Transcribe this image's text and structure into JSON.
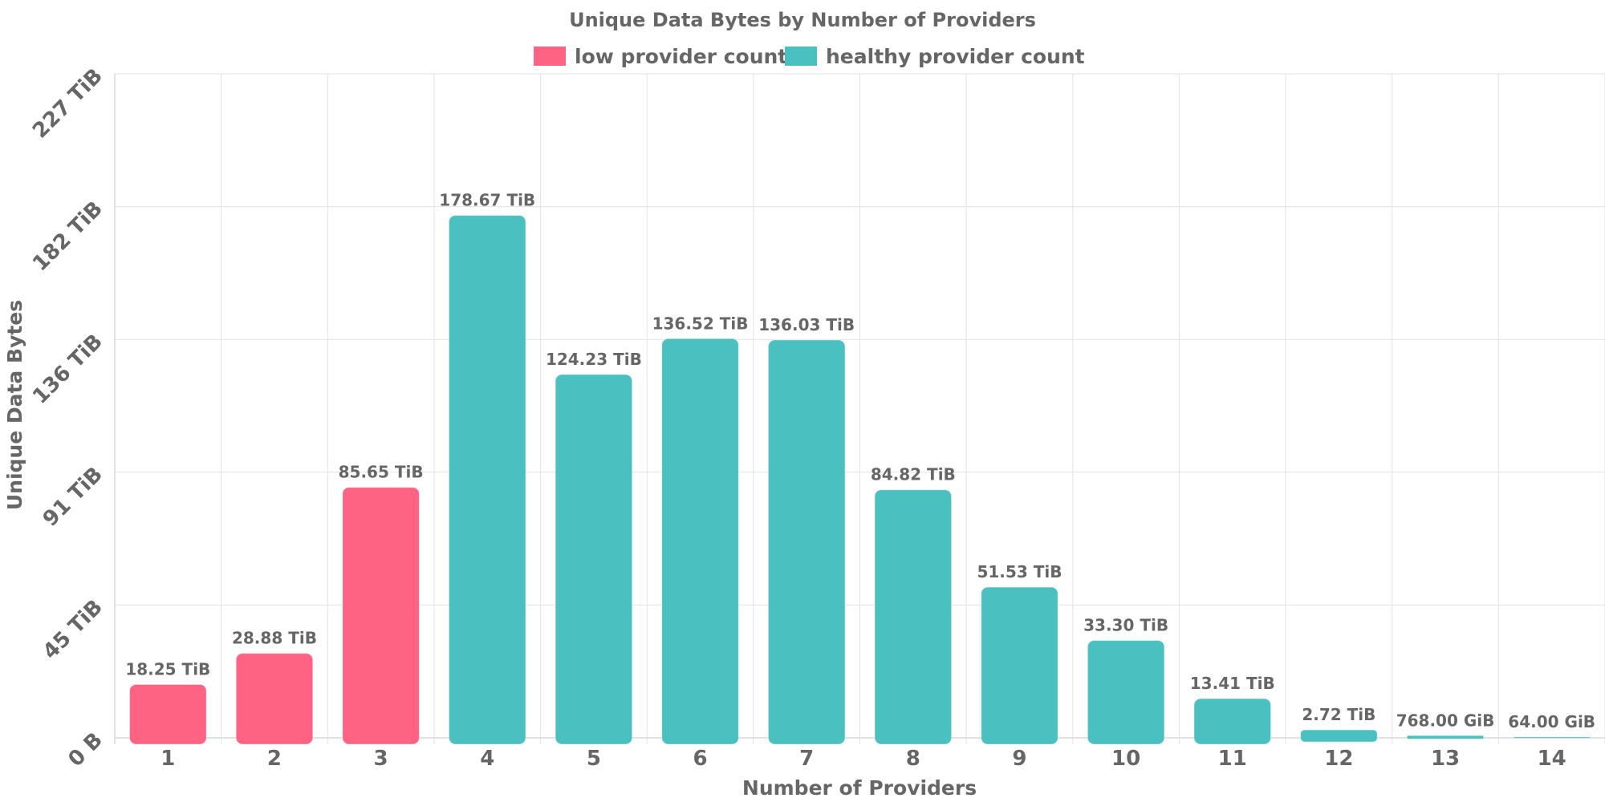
{
  "chart_data": {
    "type": "bar",
    "title": "Unique Data Bytes by Number of Providers",
    "xlabel": "Number of Providers",
    "ylabel": "Unique Data Bytes",
    "categories": [
      "1",
      "2",
      "3",
      "4",
      "5",
      "6",
      "7",
      "8",
      "9",
      "10",
      "11",
      "12",
      "13",
      "14"
    ],
    "values": [
      18.25,
      28.88,
      85.65,
      178.67,
      124.23,
      136.52,
      136.03,
      84.82,
      51.53,
      33.3,
      13.41,
      2.72,
      0.75,
      0.0625
    ],
    "value_unit": "TiB",
    "data_labels": [
      "18.25 TiB",
      "28.88 TiB",
      "85.65 TiB",
      "178.67 TiB",
      "124.23 TiB",
      "136.52 TiB",
      "136.03 TiB",
      "84.82 TiB",
      "51.53 TiB",
      "33.30 TiB",
      "13.41 TiB",
      "2.72 TiB",
      "768.00 GiB",
      "64.00 GiB"
    ],
    "series_membership": [
      "low provider count",
      "low provider count",
      "low provider count",
      "healthy provider count",
      "healthy provider count",
      "healthy provider count",
      "healthy provider count",
      "healthy provider count",
      "healthy provider count",
      "healthy provider count",
      "healthy provider count",
      "healthy provider count",
      "healthy provider count",
      "healthy provider count"
    ],
    "legend": [
      {
        "name": "low provider count",
        "color": "#ff6384"
      },
      {
        "name": "healthy provider count",
        "color": "#4bc0c0"
      }
    ],
    "legend_position": "top-center",
    "ylim": [
      0,
      227.1
    ],
    "y_ticks": [
      {
        "value": 0,
        "label": "0 B"
      },
      {
        "value": 45.42,
        "label": "45 TiB"
      },
      {
        "value": 90.84,
        "label": "91 TiB"
      },
      {
        "value": 136.26,
        "label": "136 TiB"
      },
      {
        "value": 181.68,
        "label": "182 TiB"
      },
      {
        "value": 227.1,
        "label": "227 TiB"
      }
    ],
    "grid": true
  }
}
